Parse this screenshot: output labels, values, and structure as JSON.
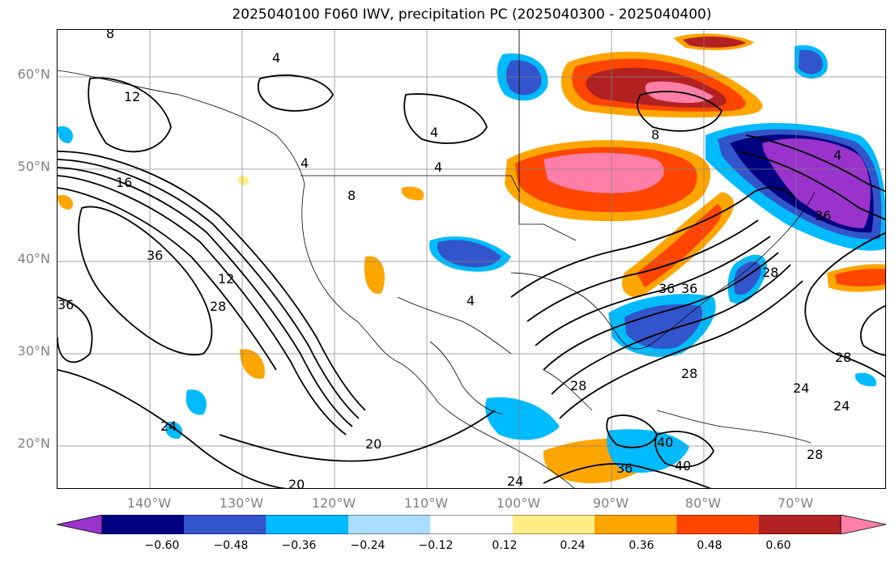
{
  "title": "2025040100 F060 IWV, precipitation PC (2025040300 - 2025040400)",
  "lat_labels": [
    "60°N",
    "50°N",
    "40°N",
    "30°N",
    "20°N"
  ],
  "lon_labels": [
    "140°W",
    "130°W",
    "120°W",
    "110°W",
    "100°W",
    "90°W",
    "80°W",
    "70°W"
  ],
  "colorbar": {
    "ticks": [
      "−0.60",
      "−0.48",
      "−0.36",
      "−0.24",
      "−0.12",
      "0.12",
      "0.24",
      "0.36",
      "0.48",
      "0.60"
    ],
    "colors": [
      "#9933cc",
      "#000080",
      "#3355cc",
      "#00bbff",
      "#aaddff",
      "#ffffff",
      "#ffee88",
      "#ffa500",
      "#ff4500",
      "#b22222",
      "#ff7fa8"
    ]
  },
  "contour_labels": [
    "8",
    "12",
    "4",
    "16",
    "36",
    "12",
    "28",
    "20",
    "20",
    "24",
    "24",
    "36",
    "40",
    "40",
    "28",
    "28",
    "24",
    "36",
    "8",
    "4",
    "8",
    "4",
    "4",
    "28",
    "36",
    "24",
    "36",
    "4",
    "28",
    "4",
    "36",
    "28"
  ]
}
